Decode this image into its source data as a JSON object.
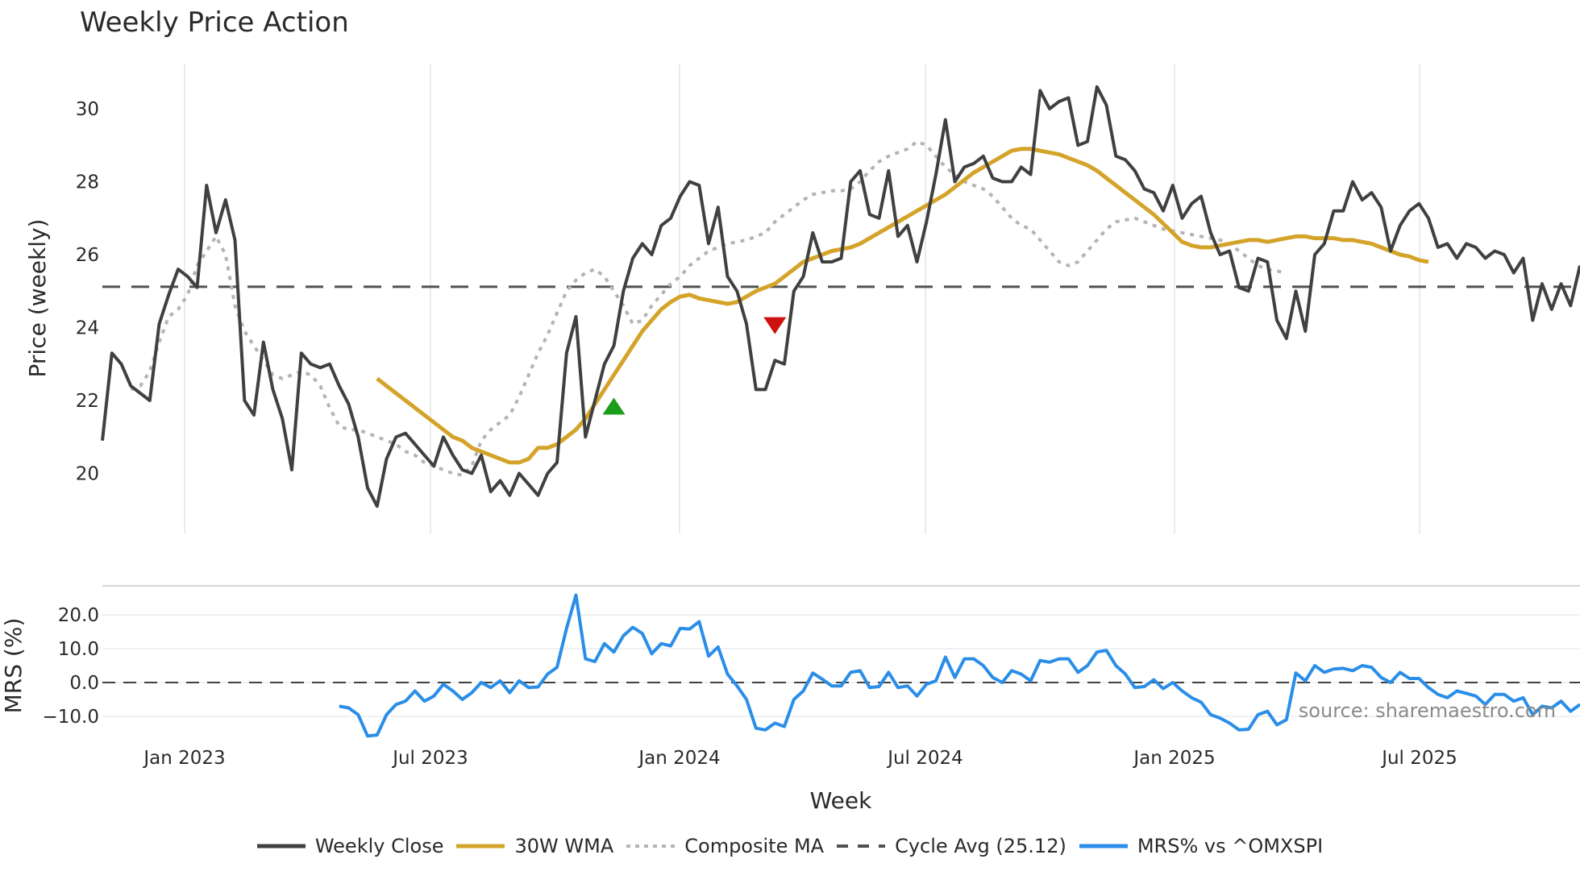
{
  "title": "Weekly Price Action",
  "source_label": "source: sharemaestro.com",
  "legend": [
    {
      "label": "Weekly Close",
      "color": "#404040",
      "style": "solid"
    },
    {
      "label": "30W WMA",
      "color": "#d4a42a",
      "style": "solid"
    },
    {
      "label": "Composite MA",
      "color": "#b4b4b4",
      "style": "dotted"
    },
    {
      "label": "Cycle Avg (25.12)",
      "color": "#505050",
      "style": "dashed"
    },
    {
      "label": "MRS% vs ^OMXSPI",
      "color": "#2a8ee8",
      "style": "solid"
    }
  ],
  "chart_data": [
    {
      "type": "line",
      "title": "Weekly Price Action",
      "xlabel": "Week",
      "ylabel": "Price (weekly)",
      "ylim": [
        18.5,
        31.5
      ],
      "yticks": [
        20,
        22,
        24,
        26,
        28,
        30
      ],
      "xticks": [
        "Jan 2023",
        "Jul 2023",
        "Jan 2024",
        "Jul 2024",
        "Jan 2025",
        "Jul 2025"
      ],
      "grid": {
        "x": true,
        "y": false
      },
      "x_start_label": "Nov 2022",
      "x_step": "1 week",
      "series": [
        {
          "name": "Weekly Close",
          "values": [
            20.9,
            23.3,
            23.0,
            22.4,
            22.2,
            22.0,
            24.1,
            24.9,
            25.6,
            25.4,
            25.1,
            27.9,
            26.6,
            27.5,
            26.4,
            22.0,
            21.6,
            23.6,
            22.3,
            21.5,
            20.1,
            23.3,
            23.0,
            22.9,
            23.0,
            22.4,
            21.9,
            21.0,
            19.6,
            19.1,
            20.4,
            21.0,
            21.1,
            20.8,
            20.5,
            20.2,
            21.0,
            20.5,
            20.1,
            20.0,
            20.5,
            19.5,
            19.8,
            19.4,
            20.0,
            19.7,
            19.4,
            20.0,
            20.3,
            23.3,
            24.3,
            21.0,
            22.0,
            23.0,
            23.5,
            25.0,
            25.9,
            26.3,
            26.0,
            26.8,
            27.0,
            27.6,
            28.0,
            27.9,
            26.3,
            27.3,
            25.4,
            25.0,
            24.1,
            22.3,
            22.3,
            23.1,
            23.0,
            25.0,
            25.4,
            26.6,
            25.8,
            25.8,
            25.9,
            28.0,
            28.3,
            27.1,
            27.0,
            28.3,
            26.5,
            26.8,
            25.8,
            26.9,
            28.2,
            29.7,
            28.0,
            28.4,
            28.5,
            28.7,
            28.1,
            28.0,
            28.0,
            28.4,
            28.2,
            30.5,
            30.0,
            30.2,
            30.3,
            29.0,
            29.1,
            30.6,
            30.1,
            28.7,
            28.6,
            28.3,
            27.8,
            27.7,
            27.2,
            27.9,
            27.0,
            27.4,
            27.6,
            26.6,
            26.0,
            26.1,
            25.1,
            25.0,
            25.9,
            25.8,
            24.2,
            23.7,
            25.0,
            23.9,
            26.0,
            26.3,
            27.2,
            27.2,
            28.0,
            27.5,
            27.7,
            27.3,
            26.1,
            26.8,
            27.2,
            27.4,
            27.0,
            26.2,
            26.3,
            25.9,
            26.3,
            26.2,
            25.9,
            26.1,
            26.0,
            25.5,
            25.9,
            24.2,
            25.2,
            24.5,
            25.2,
            24.6,
            25.7
          ]
        },
        {
          "name": "30W WMA",
          "start_index": 29,
          "values": [
            22.6,
            22.4,
            22.2,
            22.0,
            21.8,
            21.6,
            21.4,
            21.2,
            21.0,
            20.9,
            20.7,
            20.6,
            20.5,
            20.4,
            20.3,
            20.3,
            20.4,
            20.7,
            20.7,
            20.8,
            21.0,
            21.2,
            21.5,
            21.9,
            22.3,
            22.7,
            23.1,
            23.5,
            23.9,
            24.2,
            24.5,
            24.7,
            24.85,
            24.9,
            24.8,
            24.75,
            24.7,
            24.65,
            24.7,
            24.85,
            25.0,
            25.1,
            25.2,
            25.4,
            25.6,
            25.8,
            25.9,
            26.0,
            26.1,
            26.15,
            26.2,
            26.3,
            26.45,
            26.6,
            26.75,
            26.9,
            27.05,
            27.2,
            27.35,
            27.5,
            27.65,
            27.85,
            28.05,
            28.25,
            28.4,
            28.55,
            28.7,
            28.85,
            28.9,
            28.9,
            28.85,
            28.8,
            28.75,
            28.65,
            28.55,
            28.45,
            28.3,
            28.1,
            27.9,
            27.7,
            27.5,
            27.3,
            27.1,
            26.85,
            26.6,
            26.35,
            26.25,
            26.2,
            26.2,
            26.25,
            26.3,
            26.35,
            26.4,
            26.4,
            26.35,
            26.4,
            26.45,
            26.5,
            26.5,
            26.45,
            26.45,
            26.45,
            26.4,
            26.4,
            26.35,
            26.3,
            26.2,
            26.1,
            26.0,
            25.95,
            25.85,
            25.8
          ]
        },
        {
          "name": "Composite MA",
          "start_index": 3,
          "values": [
            22.3,
            22.4,
            22.8,
            23.6,
            24.3,
            24.5,
            24.9,
            25.7,
            26.1,
            26.5,
            26.0,
            24.6,
            23.9,
            23.5,
            23.1,
            22.7,
            22.6,
            22.7,
            22.8,
            22.7,
            22.4,
            21.8,
            21.3,
            21.2,
            21.2,
            21.1,
            21.0,
            20.9,
            20.8,
            20.6,
            20.5,
            20.3,
            20.2,
            20.1,
            20.0,
            19.95,
            20.2,
            20.9,
            21.2,
            21.4,
            21.6,
            22.1,
            22.7,
            23.3,
            23.8,
            24.4,
            25.0,
            25.3,
            25.5,
            25.6,
            25.4,
            25.0,
            24.6,
            24.1,
            24.2,
            24.6,
            24.9,
            25.2,
            25.4,
            25.7,
            25.9,
            26.1,
            26.2,
            26.3,
            26.35,
            26.4,
            26.5,
            26.6,
            26.9,
            27.1,
            27.3,
            27.5,
            27.65,
            27.7,
            27.75,
            27.75,
            27.8,
            28.0,
            28.3,
            28.55,
            28.7,
            28.8,
            28.9,
            29.1,
            29.0,
            28.7,
            28.4,
            28.2,
            28.0,
            27.9,
            27.8,
            27.6,
            27.3,
            27.0,
            26.8,
            26.7,
            26.4,
            26.1,
            25.8,
            25.7,
            25.8,
            26.1,
            26.4,
            26.7,
            26.9,
            26.95,
            27.0,
            26.9,
            26.8,
            26.7,
            26.65,
            26.6,
            26.55,
            26.5,
            26.45,
            26.4,
            26.3,
            26.1,
            25.9,
            25.7,
            25.6,
            25.55,
            25.5
          ]
        },
        {
          "name": "Cycle Avg (25.12)",
          "constant": 25.12
        }
      ],
      "markers": [
        {
          "type": "buy",
          "shape": "triangle-up",
          "color": "#1a9e1a",
          "week_index": 54,
          "value": 21.8
        },
        {
          "type": "sell",
          "shape": "triangle-down",
          "color": "#cc1111",
          "week_index": 71,
          "value": 24.1
        }
      ]
    },
    {
      "type": "line",
      "title": "",
      "xlabel": "Week",
      "ylabel": "MRS (%)",
      "ylim": [
        -17,
        27
      ],
      "yticks": [
        "20.0",
        "10.0",
        "0.0",
        "-10.0"
      ],
      "grid": {
        "x": false,
        "y": true
      },
      "series": [
        {
          "name": "MRS% vs ^OMXSPI",
          "start_index": 25,
          "values": [
            -7.0,
            -7.5,
            -9.5,
            -15.8,
            -15.5,
            -9.5,
            -6.5,
            -5.5,
            -2.5,
            -5.5,
            -4.0,
            -0.5,
            -2.5,
            -5.0,
            -3.0,
            0.0,
            -1.5,
            0.5,
            -3.0,
            0.5,
            -1.5,
            -1.3,
            2.5,
            4.5,
            16.0,
            25.8,
            7.0,
            6.2,
            11.5,
            9.0,
            13.8,
            16.3,
            14.5,
            8.5,
            11.5,
            10.8,
            16.0,
            15.8,
            18.0,
            7.8,
            10.5,
            2.5,
            -1.0,
            -5.0,
            -13.5,
            -14.0,
            -12.0,
            -13.0,
            -5.0,
            -2.5,
            2.8,
            1.0,
            -1.0,
            -1.0,
            3.0,
            3.5,
            -1.5,
            -1.2,
            3.0,
            -1.5,
            -1.0,
            -4.0,
            -0.5,
            0.5,
            7.5,
            1.5,
            7.0,
            7.0,
            5.0,
            1.5,
            0.0,
            3.5,
            2.5,
            0.5,
            6.5,
            6.0,
            7.0,
            7.0,
            3.0,
            5.0,
            9.0,
            9.5,
            5.0,
            2.5,
            -1.5,
            -1.2,
            0.8,
            -1.8,
            0.0,
            -2.5,
            -4.5,
            -5.8,
            -9.5,
            -10.5,
            -12.0,
            -14.0,
            -13.8,
            -9.5,
            -8.5,
            -12.5,
            -11.0,
            2.8,
            0.5,
            5.0,
            3.0,
            4.0,
            4.2,
            3.5,
            5.0,
            4.5,
            1.5,
            0.0,
            3.0,
            1.2,
            1.2,
            -1.5,
            -3.5,
            -4.5,
            -2.5,
            -3.2,
            -4.0,
            -6.5,
            -3.5,
            -3.5,
            -5.5,
            -4.5,
            -9.5,
            -7.0,
            -7.5,
            -5.5,
            -8.5,
            -6.5
          ]
        },
        {
          "name": "Zero line",
          "constant": 0.0
        }
      ]
    }
  ]
}
